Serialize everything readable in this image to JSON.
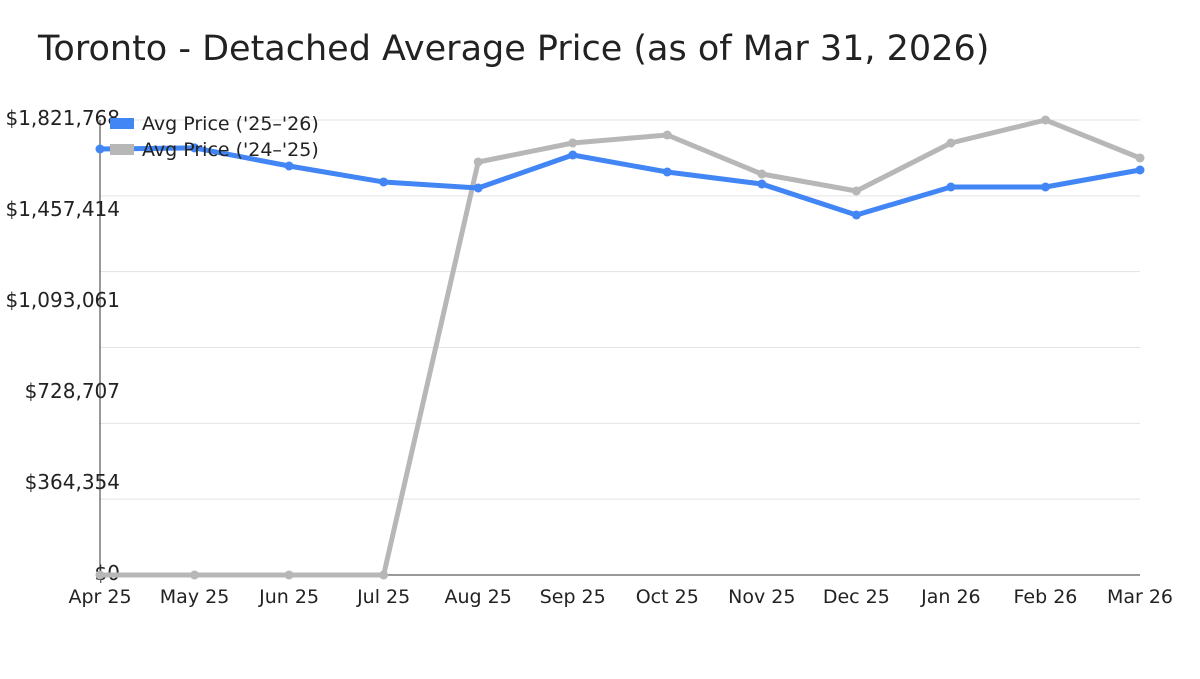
{
  "chart_data": {
    "type": "line",
    "title": "Toronto - Detached Average Price (as of Mar 31, 2026)",
    "xlabel": "",
    "ylabel": "",
    "categories": [
      "Apr 25",
      "May 25",
      "Jun 25",
      "Jul 25",
      "Aug 25",
      "Sep 25",
      "Oct 25",
      "Nov 25",
      "Dec 25",
      "Jan 26",
      "Feb 26",
      "Mar 26"
    ],
    "ylim": [
      0,
      1821768
    ],
    "y_ticks": [
      0,
      364354,
      728707,
      1093061,
      1457414,
      1821768
    ],
    "y_tick_labels": [
      "$0",
      "$364,354",
      "$728,707",
      "$1,093,061",
      "$1,457,414",
      "$1,821,768"
    ],
    "grid": true,
    "legend_position": "top-left",
    "series": [
      {
        "name": "Avg Price ('25–'26)",
        "color": "#4285f4",
        "values": [
          1705650,
          1710000,
          1637580,
          1573520,
          1549500,
          1681630,
          1613560,
          1565510,
          1441390,
          1553500,
          1553500,
          1621570
        ]
      },
      {
        "name": "Avg Price ('24–'25)",
        "color": "#b7b7b7",
        "values": [
          0,
          0,
          0,
          0,
          1653600,
          1729680,
          1761710,
          1605550,
          1537490,
          1729680,
          1821768,
          1669620
        ]
      }
    ]
  }
}
